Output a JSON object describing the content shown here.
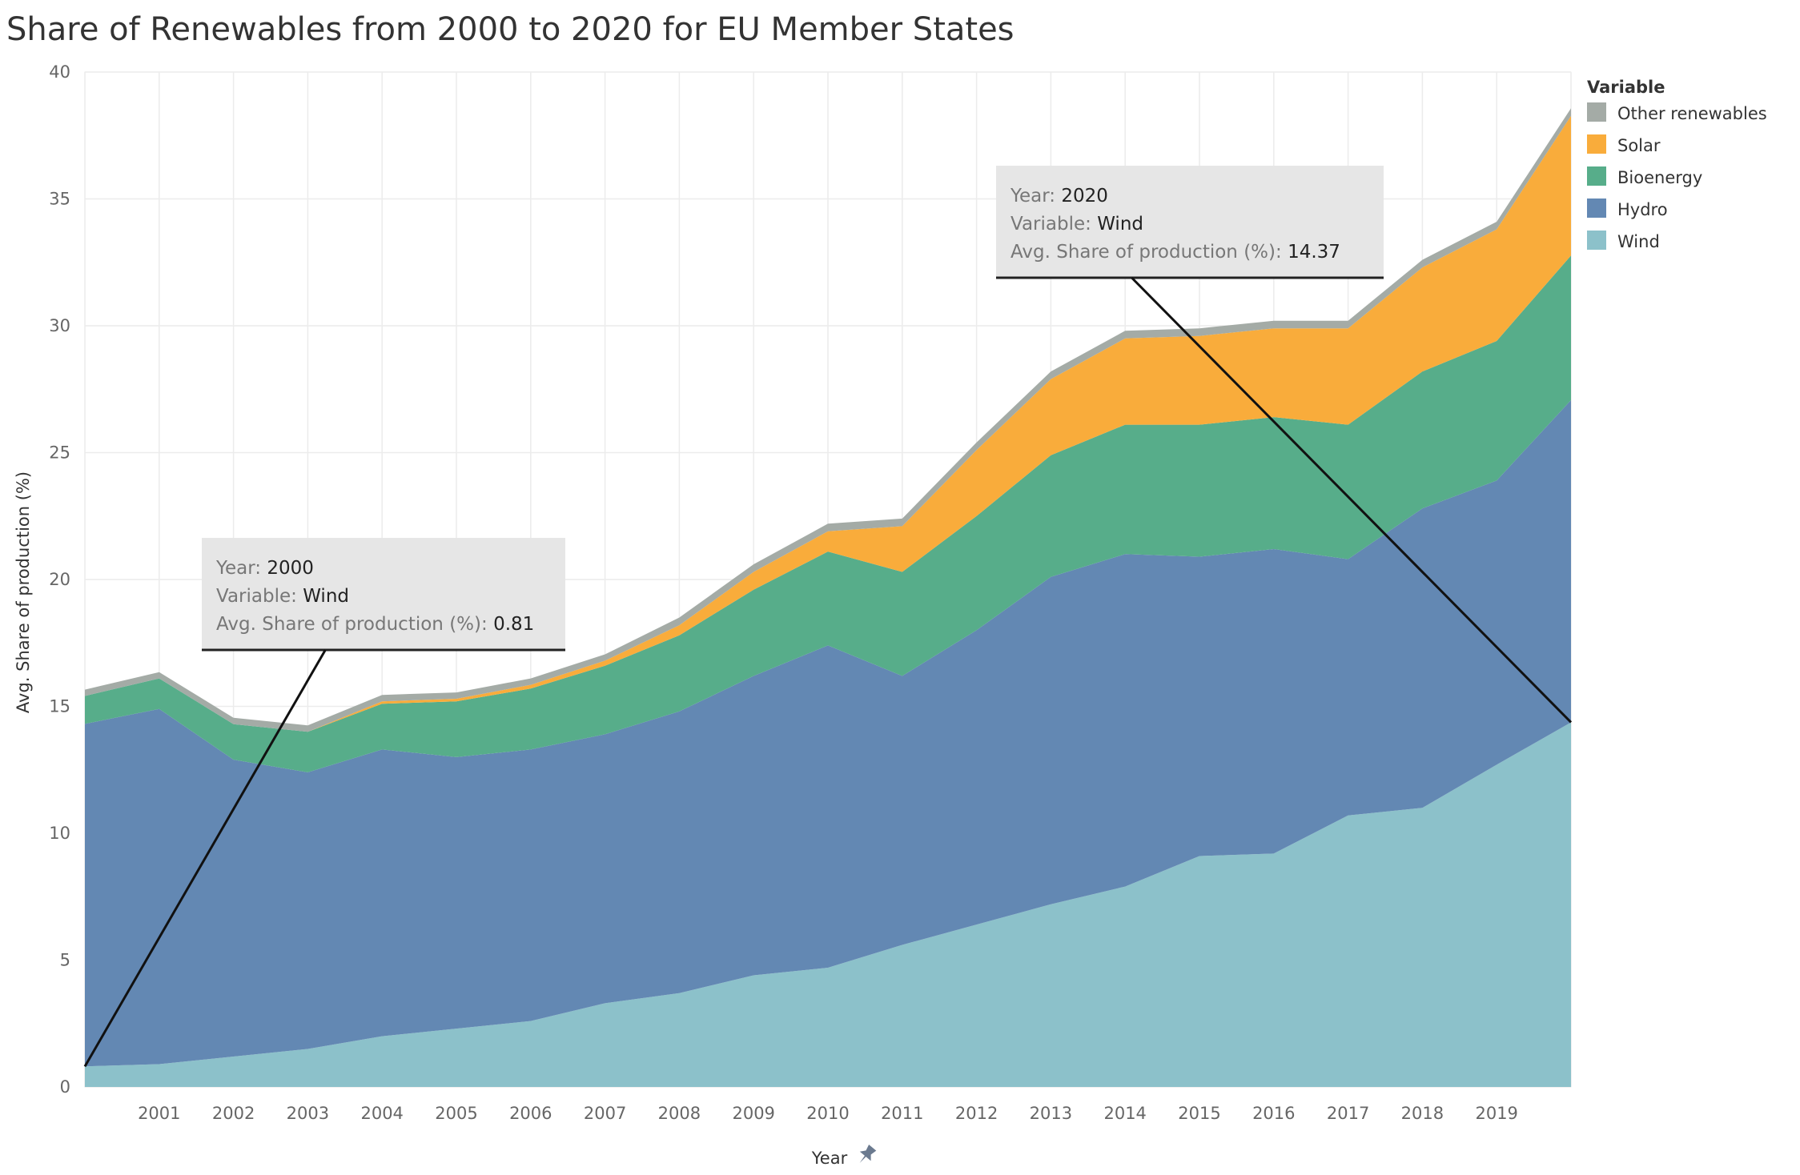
{
  "chart_data": {
    "type": "area",
    "stacked": true,
    "title": "Share of Renewables from 2000 to 2020 for EU Member States",
    "xlabel": "Year",
    "ylabel": "Avg. Share of production (%)",
    "ylim": [
      0,
      40
    ],
    "yticks": [
      0,
      5,
      10,
      15,
      20,
      25,
      30,
      35,
      40
    ],
    "x": [
      2000,
      2001,
      2002,
      2003,
      2004,
      2005,
      2006,
      2007,
      2008,
      2009,
      2010,
      2011,
      2012,
      2013,
      2014,
      2015,
      2016,
      2017,
      2018,
      2019,
      2020
    ],
    "xtick_labels": [
      "2001",
      "2002",
      "2003",
      "2004",
      "2005",
      "2006",
      "2007",
      "2008",
      "2009",
      "2010",
      "2011",
      "2012",
      "2013",
      "2014",
      "2015",
      "2016",
      "2017",
      "2018",
      "2019"
    ],
    "grid": true,
    "legend_title": "Variable",
    "legend_position": "right",
    "series": [
      {
        "name": "Wind",
        "color": "#8CC1CA",
        "values": [
          0.81,
          0.9,
          1.2,
          1.5,
          2.0,
          2.3,
          2.6,
          3.3,
          3.7,
          4.4,
          4.7,
          5.6,
          6.4,
          7.2,
          7.9,
          9.1,
          9.2,
          10.7,
          11.0,
          12.7,
          14.37
        ]
      },
      {
        "name": "Hydro",
        "color": "#6388B3",
        "values": [
          13.5,
          14.0,
          11.7,
          10.9,
          11.3,
          10.7,
          10.7,
          10.6,
          11.1,
          11.8,
          12.7,
          10.6,
          11.6,
          12.9,
          13.1,
          11.8,
          12.0,
          10.1,
          11.8,
          11.2,
          12.7
        ]
      },
      {
        "name": "Bioenergy",
        "color": "#57AD8A",
        "values": [
          1.1,
          1.2,
          1.4,
          1.6,
          1.8,
          2.2,
          2.4,
          2.7,
          3.0,
          3.4,
          3.7,
          4.1,
          4.5,
          4.8,
          5.1,
          5.2,
          5.2,
          5.3,
          5.4,
          5.5,
          5.7
        ]
      },
      {
        "name": "Solar",
        "color": "#F9AC3B",
        "values": [
          0.0,
          0.0,
          0.0,
          0.0,
          0.1,
          0.1,
          0.15,
          0.2,
          0.4,
          0.7,
          0.8,
          1.8,
          2.6,
          3.0,
          3.4,
          3.5,
          3.5,
          3.8,
          4.1,
          4.4,
          5.5
        ]
      },
      {
        "name": "Other renewables",
        "color": "#A4ABA6",
        "values": [
          0.25,
          0.25,
          0.25,
          0.25,
          0.25,
          0.25,
          0.25,
          0.25,
          0.3,
          0.3,
          0.3,
          0.3,
          0.3,
          0.3,
          0.3,
          0.3,
          0.3,
          0.3,
          0.3,
          0.3,
          0.3
        ]
      }
    ],
    "annotations": [
      {
        "year_label": "Year:",
        "year": "2000",
        "variable_label": "Variable:",
        "variable": "Wind",
        "measure_label": "Avg. Share of production (%):",
        "measure": "0.81",
        "target_x": 2000,
        "target_y": 0.81
      },
      {
        "year_label": "Year:",
        "year": "2020",
        "variable_label": "Variable:",
        "variable": "Wind",
        "measure_label": "Avg. Share of production (%):",
        "measure": "14.37",
        "target_x": 2020,
        "target_y": 14.37
      }
    ]
  },
  "colors": {
    "background": "#ffffff",
    "gridline": "#ececec",
    "tooltip_bg": "#e6e6e6",
    "pin_icon": "#6b7a8f"
  },
  "icons": {
    "pin": "pin-icon"
  }
}
